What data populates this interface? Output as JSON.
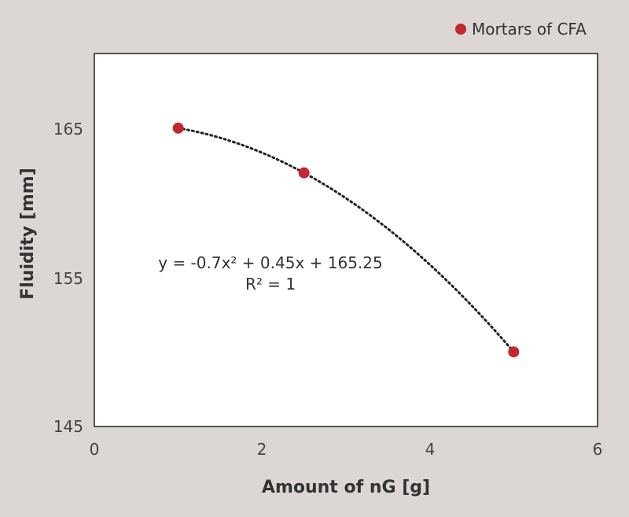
{
  "chart_data": {
    "type": "scatter",
    "title": "",
    "xlabel": "Amount of nG [g]",
    "ylabel": "Fluidity [mm]",
    "xlim": [
      0,
      6
    ],
    "ylim": [
      145,
      170
    ],
    "x_ticks": [
      "0",
      "2",
      "4",
      "6"
    ],
    "y_ticks": [
      "145",
      "155",
      "165"
    ],
    "grid": false,
    "legend_position": "top-right",
    "series": [
      {
        "name": "Mortars of CFA",
        "color": "#c1272d",
        "x": [
          1,
          2.5,
          5
        ],
        "y": [
          165,
          162,
          150
        ]
      }
    ],
    "trendline": {
      "type": "polynomial",
      "style": "dotted",
      "color": "#222222",
      "coefficients": [
        -0.7,
        0.45,
        165.25
      ],
      "equation": "y = -0.7x² + 0.45x + 165.25",
      "r_squared": "R² = 1"
    }
  }
}
